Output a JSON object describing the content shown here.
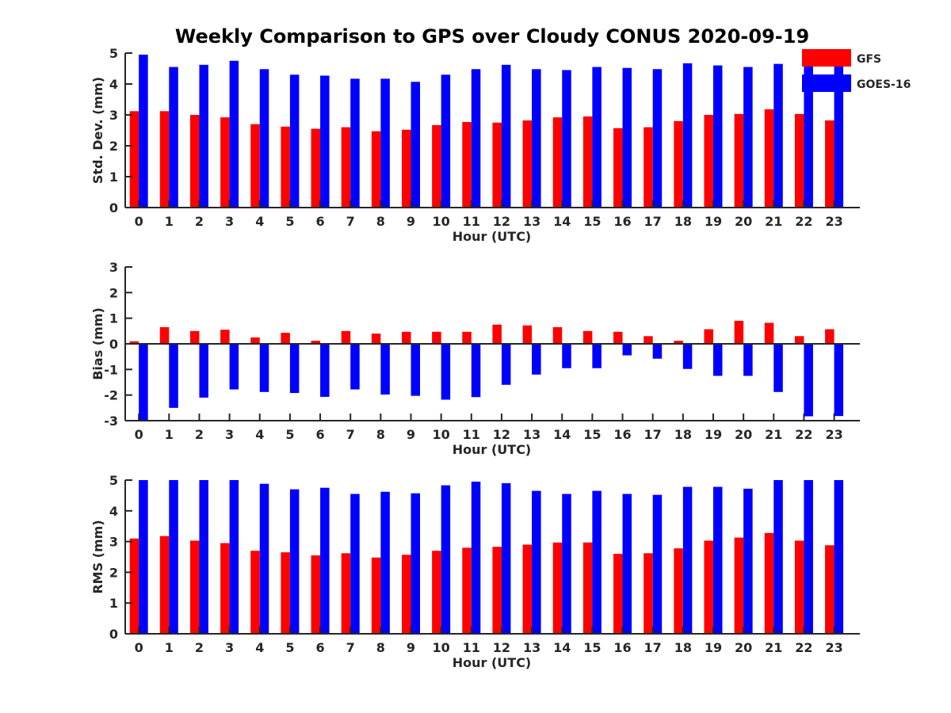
{
  "title": "Weekly Comparison to GPS over Cloudy CONUS 2020-09-19",
  "legend": [
    {
      "name": "GFS",
      "color": "#ff0000"
    },
    {
      "name": "GOES-16",
      "color": "#0000ff"
    }
  ],
  "chart_data": [
    {
      "type": "bar",
      "title": "Weekly Comparison to GPS over Cloudy CONUS 2020-09-19",
      "xlabel": "Hour (UTC)",
      "ylabel": "Std. Dev. (mm)",
      "ylim": [
        0,
        5
      ],
      "yticks": [
        "0",
        "1",
        "2",
        "3",
        "4",
        "5"
      ],
      "grid": false,
      "legend_position": "top-right",
      "categories": [
        "0",
        "1",
        "2",
        "3",
        "4",
        "5",
        "6",
        "7",
        "8",
        "9",
        "10",
        "11",
        "12",
        "13",
        "14",
        "15",
        "16",
        "17",
        "18",
        "19",
        "20",
        "21",
        "22",
        "23"
      ],
      "series": [
        {
          "name": "GFS",
          "color": "#ff0000",
          "values": [
            3.12,
            3.12,
            3.0,
            2.92,
            2.7,
            2.62,
            2.55,
            2.6,
            2.47,
            2.52,
            2.67,
            2.77,
            2.75,
            2.82,
            2.92,
            2.95,
            2.57,
            2.6,
            2.8,
            3.0,
            3.03,
            3.18,
            3.03,
            2.82
          ]
        },
        {
          "name": "GOES-16",
          "color": "#0000ff",
          "values": [
            4.95,
            4.55,
            4.62,
            4.75,
            4.48,
            4.3,
            4.27,
            4.17,
            4.17,
            4.07,
            4.3,
            4.48,
            4.62,
            4.48,
            4.45,
            4.55,
            4.52,
            4.48,
            4.67,
            4.6,
            4.55,
            4.65,
            4.82,
            4.68
          ]
        }
      ]
    },
    {
      "type": "bar",
      "xlabel": "Hour (UTC)",
      "ylabel": "Bias (mm)",
      "ylim": [
        -3,
        3
      ],
      "yticks": [
        "-3",
        "-2",
        "-1",
        "0",
        "1",
        "2",
        "3"
      ],
      "grid": false,
      "categories": [
        "0",
        "1",
        "2",
        "3",
        "4",
        "5",
        "6",
        "7",
        "8",
        "9",
        "10",
        "11",
        "12",
        "13",
        "14",
        "15",
        "16",
        "17",
        "18",
        "19",
        "20",
        "21",
        "22",
        "23"
      ],
      "series": [
        {
          "name": "GFS",
          "color": "#ff0000",
          "values": [
            0.1,
            0.65,
            0.5,
            0.55,
            0.25,
            0.43,
            0.12,
            0.5,
            0.4,
            0.47,
            0.47,
            0.47,
            0.75,
            0.72,
            0.65,
            0.5,
            0.47,
            0.3,
            0.12,
            0.57,
            0.9,
            0.82,
            0.3,
            0.57
          ]
        },
        {
          "name": "GOES-16",
          "color": "#0000ff",
          "values": [
            -2.98,
            -2.5,
            -2.1,
            -1.78,
            -1.88,
            -1.92,
            -2.07,
            -1.78,
            -1.98,
            -2.03,
            -2.18,
            -2.08,
            -1.6,
            -1.2,
            -0.95,
            -0.95,
            -0.45,
            -0.58,
            -0.98,
            -1.25,
            -1.25,
            -1.88,
            -2.83,
            -2.82
          ]
        }
      ]
    },
    {
      "type": "bar",
      "xlabel": "Hour (UTC)",
      "ylabel": "RMS (mm)",
      "ylim": [
        0,
        5
      ],
      "yticks": [
        "0",
        "1",
        "2",
        "3",
        "4",
        "5"
      ],
      "grid": false,
      "categories": [
        "0",
        "1",
        "2",
        "3",
        "4",
        "5",
        "6",
        "7",
        "8",
        "9",
        "10",
        "11",
        "12",
        "13",
        "14",
        "15",
        "16",
        "17",
        "18",
        "19",
        "20",
        "21",
        "22",
        "23"
      ],
      "series": [
        {
          "name": "GFS",
          "color": "#ff0000",
          "values": [
            3.1,
            3.18,
            3.03,
            2.95,
            2.7,
            2.65,
            2.55,
            2.62,
            2.48,
            2.57,
            2.7,
            2.8,
            2.83,
            2.9,
            2.97,
            2.97,
            2.6,
            2.62,
            2.78,
            3.03,
            3.13,
            3.28,
            3.03,
            2.88
          ]
        },
        {
          "name": "GOES-16",
          "color": "#0000ff",
          "values": [
            5.0,
            5.0,
            5.0,
            5.0,
            4.88,
            4.7,
            4.75,
            4.55,
            4.62,
            4.57,
            4.83,
            4.95,
            4.9,
            4.65,
            4.55,
            4.65,
            4.55,
            4.52,
            4.78,
            4.78,
            4.72,
            5.0,
            5.0,
            5.0
          ]
        }
      ]
    }
  ]
}
